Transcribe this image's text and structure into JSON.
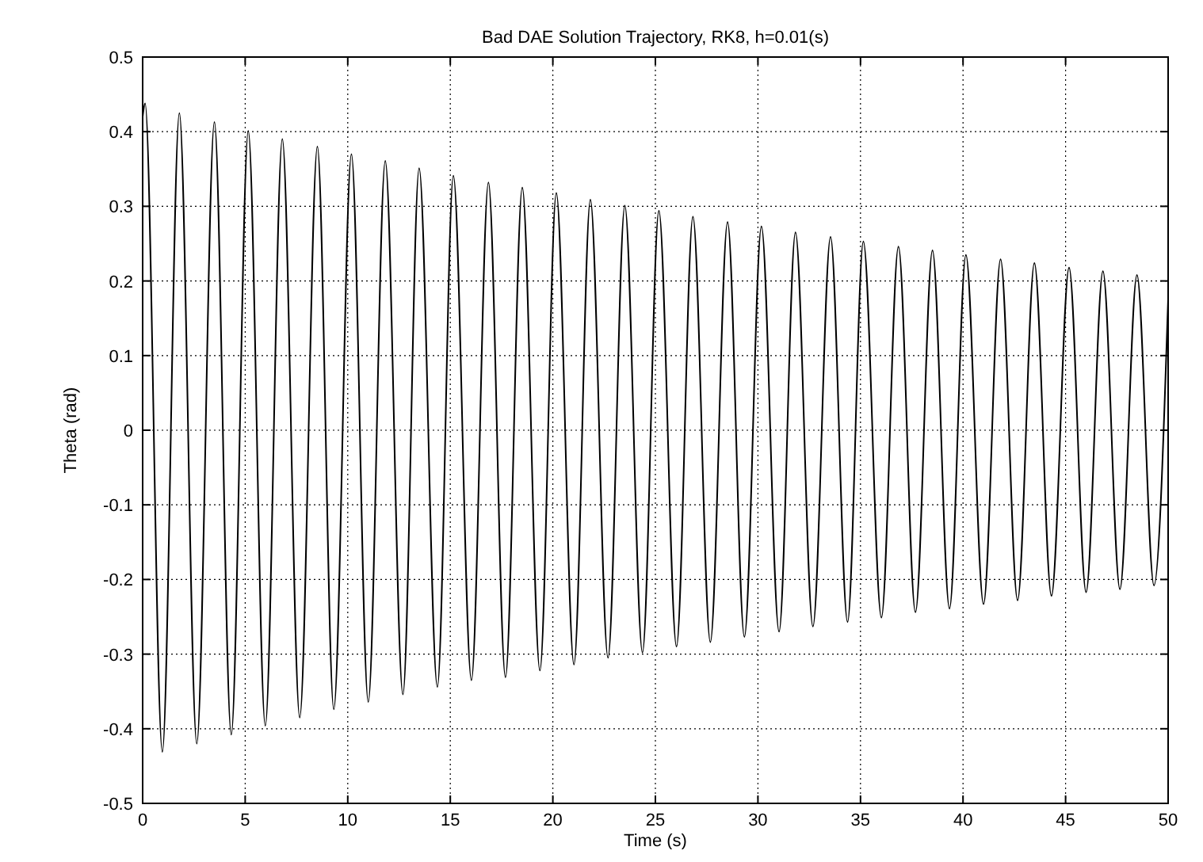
{
  "chart_data": {
    "type": "line",
    "title": "Bad DAE Solution Trajectory, RK8, h=0.01(s)",
    "xlabel": "Time (s)",
    "ylabel": "Theta (rad)",
    "xlim": [
      0,
      50
    ],
    "xticks": [
      0,
      5,
      10,
      15,
      20,
      25,
      30,
      35,
      40,
      45,
      50
    ],
    "ylim": [
      -0.5,
      0.5
    ],
    "yticks": [
      -0.5,
      -0.4,
      -0.3,
      -0.2,
      -0.1,
      0,
      0.1,
      0.2,
      0.3,
      0.4,
      0.5
    ],
    "grid": true,
    "marker": "none",
    "line_style": "solid",
    "series": [
      {
        "color": "#000000",
        "x": [
          0,
          0.12,
          0.96,
          1.79,
          2.64,
          3.5,
          4.32,
          5.15,
          5.98,
          6.81,
          7.66,
          8.52,
          9.32,
          10.18,
          11.0,
          11.83,
          12.69,
          13.48,
          14.37,
          15.15,
          16.03,
          16.86,
          17.69,
          18.51,
          19.37,
          20.17,
          21.03,
          21.83,
          22.69,
          23.51,
          24.37,
          25.17,
          26.03,
          26.83,
          27.68,
          28.52,
          29.34,
          30.17,
          31.03,
          31.83,
          32.68,
          33.54,
          34.37,
          35.14,
          36.02,
          36.85,
          37.68,
          38.51,
          39.34,
          40.14,
          41.0,
          41.83,
          42.66,
          43.48,
          44.31,
          45.17,
          46.0,
          46.82,
          47.65,
          48.48,
          49.31,
          50
        ],
        "values": [
          0.42,
          0.438,
          -0.431,
          0.425,
          -0.42,
          0.413,
          -0.408,
          0.401,
          -0.396,
          0.39,
          -0.385,
          0.38,
          -0.374,
          0.37,
          -0.364,
          0.361,
          -0.354,
          0.351,
          -0.344,
          0.341,
          -0.335,
          0.332,
          -0.331,
          0.325,
          -0.322,
          0.318,
          -0.314,
          0.309,
          -0.305,
          0.301,
          -0.298,
          0.294,
          -0.29,
          0.286,
          -0.284,
          0.279,
          -0.277,
          0.273,
          -0.27,
          0.265,
          -0.263,
          0.259,
          -0.257,
          0.253,
          -0.251,
          0.246,
          -0.244,
          0.241,
          -0.239,
          0.235,
          -0.233,
          0.229,
          -0.228,
          0.224,
          -0.222,
          0.218,
          -0.217,
          0.213,
          -0.213,
          0.208,
          -0.208,
          0.175
        ]
      }
    ]
  }
}
